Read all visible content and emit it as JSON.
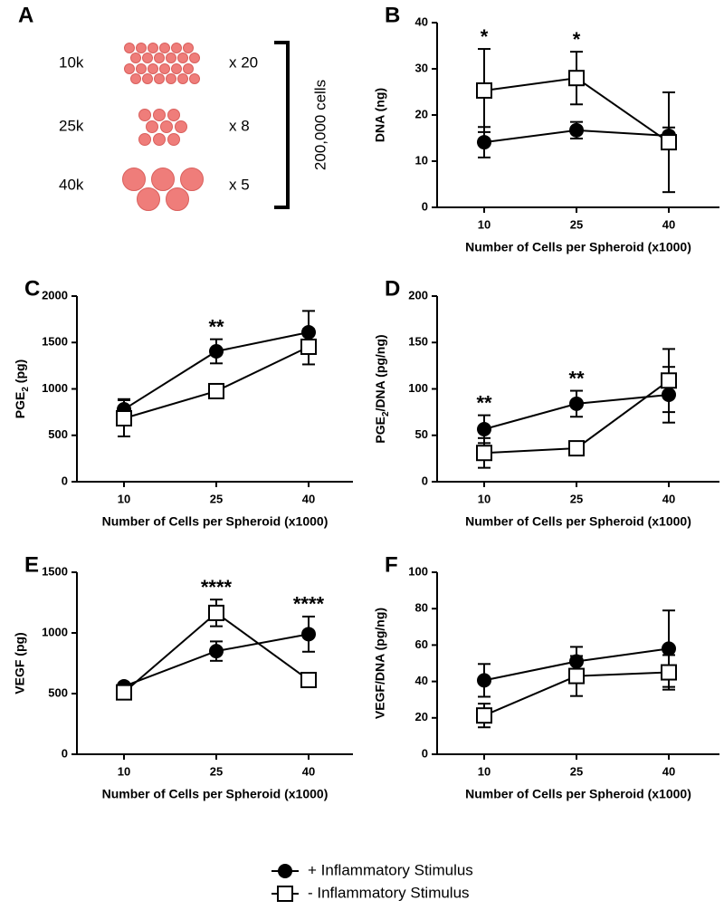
{
  "panel_a": {
    "letter": "A",
    "rows": [
      {
        "label": "10k",
        "multiplier": "x 20"
      },
      {
        "label": "25k",
        "multiplier": "x 8"
      },
      {
        "label": "40k",
        "multiplier": "x 5"
      }
    ],
    "total": "200,000 cells"
  },
  "chart_data": [
    {
      "type": "line",
      "letter": "B",
      "ylabel": "DNA (ng)",
      "xlabel": "Number of Cells per Spheroid (x1000)",
      "categories": [
        "10",
        "25",
        "40"
      ],
      "ylim": [
        0,
        40
      ],
      "yticks": [
        0,
        10,
        20,
        30,
        40
      ],
      "series": [
        {
          "name": "+ Inflammatory Stimulus",
          "marker": "circle",
          "color": "#000000",
          "values": [
            14.1,
            16.7,
            15.5
          ],
          "errors": [
            3.3,
            1.8,
            1.8
          ]
        },
        {
          "name": "- Inflammatory Stimulus",
          "marker": "square",
          "color": "#000000",
          "values": [
            25.3,
            28.0,
            14.1
          ],
          "errors": [
            9.0,
            5.7,
            10.8
          ]
        }
      ],
      "annotations": [
        "*",
        "*",
        null
      ]
    },
    {
      "type": "line",
      "letter": "C",
      "ylabel": {
        "text": "PGE",
        "sub": "2",
        "rest": " (pg)"
      },
      "xlabel": "Number of Cells per Spheroid (x1000)",
      "categories": [
        "10",
        "25",
        "40"
      ],
      "ylim": [
        0,
        2000
      ],
      "yticks": [
        0,
        500,
        1000,
        1500,
        2000
      ],
      "series": [
        {
          "name": "+ Inflammatory Stimulus",
          "marker": "circle",
          "color": "#000000",
          "values": [
            780,
            1405,
            1610
          ],
          "errors": [
            110,
            130,
            230
          ]
        },
        {
          "name": "- Inflammatory Stimulus",
          "marker": "square",
          "color": "#000000",
          "values": [
            683,
            976,
            1454
          ],
          "errors": [
            195,
            30,
            190
          ]
        }
      ],
      "annotations": [
        null,
        "**",
        null
      ]
    },
    {
      "type": "line",
      "letter": "D",
      "ylabel": {
        "text": "PGE",
        "sub": "2",
        "rest": "/DNA (pg/ng)"
      },
      "xlabel": "Number of Cells per Spheroid (x1000)",
      "categories": [
        "10",
        "25",
        "40"
      ],
      "ylim": [
        0,
        200
      ],
      "yticks": [
        0,
        50,
        100,
        150,
        200
      ],
      "series": [
        {
          "name": "+ Inflammatory Stimulus",
          "marker": "circle",
          "color": "#000000",
          "values": [
            56.6,
            84,
            93.7
          ],
          "errors": [
            15,
            14,
            30
          ]
        },
        {
          "name": "- Inflammatory Stimulus",
          "marker": "square",
          "color": "#000000",
          "values": [
            31,
            36,
            109
          ],
          "errors": [
            16,
            3,
            34
          ]
        }
      ],
      "annotations": [
        "**",
        "**",
        null
      ]
    },
    {
      "type": "line",
      "letter": "E",
      "ylabel": "VEGF (pg)",
      "xlabel": "Number of Cells per Spheroid (x1000)",
      "categories": [
        "10",
        "25",
        "40"
      ],
      "ylim": [
        0,
        1500
      ],
      "yticks": [
        0,
        500,
        1000,
        1500
      ],
      "series": [
        {
          "name": "+ Inflammatory Stimulus",
          "marker": "circle",
          "color": "#000000",
          "values": [
            560,
            850,
            990
          ],
          "errors": [
            20,
            80,
            145
          ]
        },
        {
          "name": "- Inflammatory Stimulus",
          "marker": "square",
          "color": "#000000",
          "values": [
            510,
            1165,
            612
          ],
          "errors": [
            20,
            110,
            30
          ]
        }
      ],
      "annotations": [
        null,
        "****",
        "****"
      ]
    },
    {
      "type": "line",
      "letter": "F",
      "ylabel": "VEGF/DNA (pg/ng)",
      "xlabel": "Number of Cells per Spheroid (x1000)",
      "categories": [
        "10",
        "25",
        "40"
      ],
      "ylim": [
        0,
        100
      ],
      "yticks": [
        0,
        20,
        40,
        60,
        80,
        100
      ],
      "series": [
        {
          "name": "+ Inflammatory Stimulus",
          "marker": "circle",
          "color": "#000000",
          "values": [
            40.6,
            51,
            58
          ],
          "errors": [
            9,
            8,
            21
          ]
        },
        {
          "name": "- Inflammatory Stimulus",
          "marker": "square",
          "color": "#000000",
          "values": [
            21.3,
            43,
            45
          ],
          "errors": [
            6.5,
            11,
            9.5
          ]
        }
      ],
      "annotations": [
        null,
        null,
        null
      ]
    }
  ]
}
